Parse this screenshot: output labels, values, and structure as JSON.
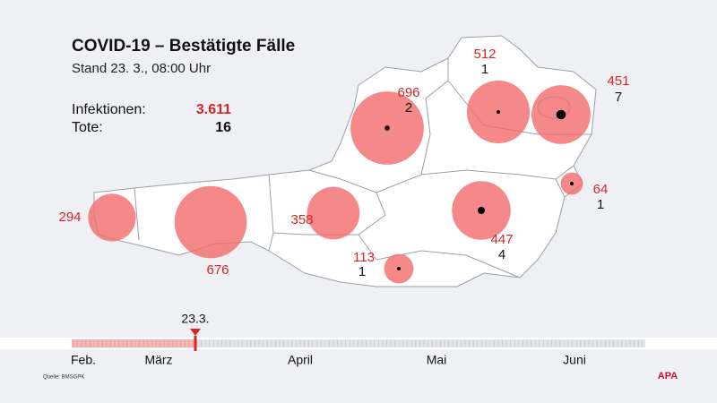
{
  "header": {
    "title": "COVID-19 – Bestätigte Fälle",
    "subtitle": "Stand 23. 3., 08:00 Uhr"
  },
  "totals": {
    "infections_label": "Infektionen:",
    "infections": "3.611",
    "deaths_label": "Tote:",
    "deaths": "16"
  },
  "regions": [
    {
      "cases": 294
    },
    {
      "cases": 676
    },
    {
      "cases": 358
    },
    {
      "cases": 113,
      "deaths": 1
    },
    {
      "cases": 696,
      "deaths": 2
    },
    {
      "cases": 512,
      "deaths": 1
    },
    {
      "cases": 451,
      "deaths": 7
    },
    {
      "cases": 447,
      "deaths": 4
    },
    {
      "cases": 64,
      "deaths": 1
    }
  ],
  "timeline": {
    "marker": "23.3.",
    "months": [
      "Feb.",
      "März",
      "April",
      "Mai",
      "Juni"
    ]
  },
  "source": "Quelle: BMSGPK",
  "logo": "APA"
}
